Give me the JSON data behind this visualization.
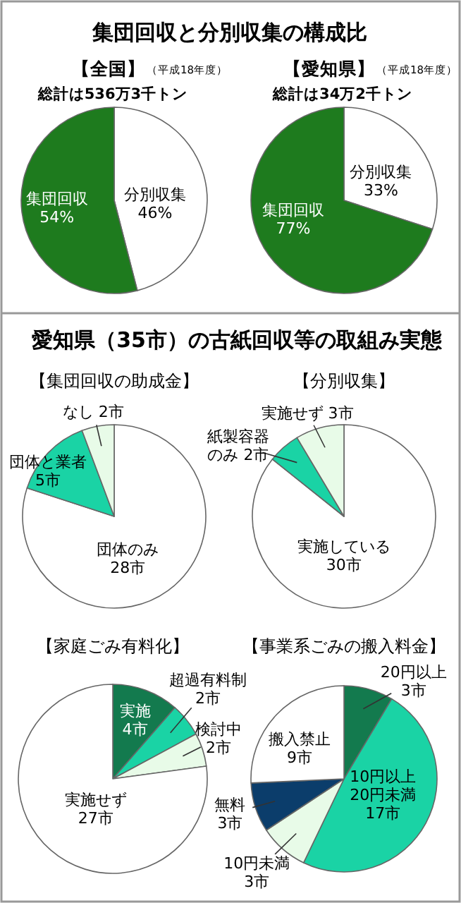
{
  "chart_data": [
    {
      "type": "other",
      "title": "集団回収と分別収集の構成比"
    },
    {
      "type": "pie",
      "title": "【全国】",
      "subtitle": "（平成18年度）",
      "annotations": [
        "総計は536万3千トン"
      ],
      "categories": [
        "分別収集",
        "集団回収"
      ],
      "values": [
        46,
        54
      ],
      "value_labels": [
        "46%",
        "54%"
      ],
      "colors": [
        "#ffffff",
        "#1e7b1e"
      ]
    },
    {
      "type": "pie",
      "title": "【愛知県】",
      "subtitle": "（平成18年度）",
      "annotations": [
        "総計は34万2千トン"
      ],
      "categories": [
        "分別収集",
        "集団回収"
      ],
      "values": [
        33,
        77
      ],
      "value_labels": [
        "33%",
        "77%"
      ],
      "colors": [
        "#ffffff",
        "#1e7b1e"
      ]
    },
    {
      "type": "other",
      "title": "愛知県（35市）の古紙回収等の取組み実態"
    },
    {
      "type": "pie",
      "title": "【集団回収の助成金】",
      "categories": [
        "団体のみ",
        "団体と業者",
        "なし"
      ],
      "values": [
        28,
        5,
        2
      ],
      "value_labels": [
        "28市",
        "5市",
        "2市"
      ],
      "colors": [
        "#ffffff",
        "#1ad3a5",
        "#e8fbe8"
      ]
    },
    {
      "type": "pie",
      "title": "【分別収集】",
      "categories": [
        "実施している",
        "紙製容器のみ",
        "実施せず"
      ],
      "values": [
        30,
        2,
        3
      ],
      "value_labels": [
        "30市",
        "2市",
        "3市"
      ],
      "colors": [
        "#ffffff",
        "#1ad3a5",
        "#e8fbe8"
      ]
    },
    {
      "type": "pie",
      "title": "【家庭ごみ有料化】",
      "categories": [
        "実施",
        "超過有料制",
        "検討中",
        "実施せず"
      ],
      "values": [
        4,
        2,
        2,
        27
      ],
      "value_labels": [
        "4市",
        "2市",
        "2市",
        "27市"
      ],
      "colors": [
        "#137a4e",
        "#1ad3a5",
        "#e8fbe8",
        "#ffffff"
      ]
    },
    {
      "type": "pie",
      "title": "【事業系ごみの搬入料金】",
      "categories": [
        "20円以上",
        "10円以上20円未満",
        "10円未満",
        "無料",
        "搬入禁止"
      ],
      "values": [
        3,
        17,
        3,
        3,
        9
      ],
      "value_labels": [
        "3市",
        "17市",
        "3市",
        "3市",
        "9市"
      ],
      "colors": [
        "#137a4e",
        "#1ad3a5",
        "#e8fbe8",
        "#0b3d6b",
        "#ffffff"
      ]
    }
  ]
}
